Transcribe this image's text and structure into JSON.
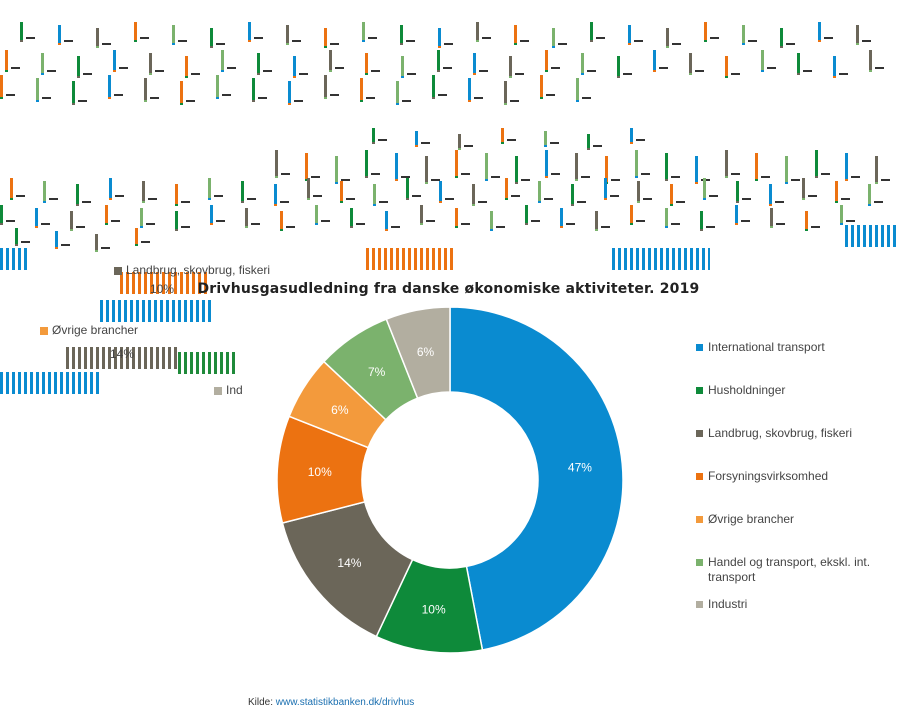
{
  "chart_data": {
    "type": "pie",
    "donut": true,
    "title": "Drivhusgasudledning fra danske økonomiske aktiviteter. 2019",
    "categories": [
      "International transport",
      "Husholdninger",
      "Landbrug, skovbrug, fiskeri",
      "Forsyningsvirksomhed",
      "Øvrige brancher",
      "Handel og transport, ekskl. int. transport",
      "Industri"
    ],
    "values": [
      47,
      10,
      14,
      10,
      6,
      7,
      6
    ],
    "value_labels": [
      "47%",
      "10%",
      "14%",
      "10%",
      "6%",
      "7%",
      "6%"
    ],
    "colors": [
      "#0a8bd0",
      "#0e8a3a",
      "#6b6659",
      "#ec7211",
      "#f39a3c",
      "#7bb26d",
      "#b2aea0"
    ],
    "legend_position": "right"
  },
  "source": {
    "label": "Kilde:",
    "link_text": "www.statistikbanken.dk/drivhus"
  },
  "artifacts": {
    "ghost_texts": [
      "Landbrug, skovbrug, fiskeri",
      "10%",
      "Øvrige brancher",
      "14%",
      "Ind"
    ]
  }
}
